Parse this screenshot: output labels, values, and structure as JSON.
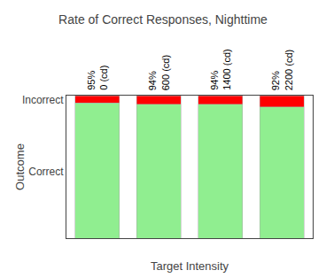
{
  "chart_data": {
    "type": "bar",
    "title": "Rate of Correct Responses, Nighttime",
    "xlabel": "Target Intensity",
    "ylabel": "Outcome",
    "categories": [
      "0 (cd)",
      "600 (cd)",
      "1400 (cd)",
      "2200 (cd)"
    ],
    "series": [
      {
        "color": "#90EE90",
        "values": [
          0.95,
          0.94,
          0.94,
          0.92
        ],
        "value_labels": [
          "95%",
          "94%",
          "94%",
          "92%"
        ]
      },
      {
        "color": "#FF0000",
        "values": [
          0.05,
          0.06,
          0.06,
          0.08
        ]
      }
    ],
    "stacked": true,
    "data_labels": true,
    "tick_labels": "y",
    "grid": false,
    "ylim": [
      0,
      1.0
    ],
    "yticks": [
      {
        "value": 0.47,
        "label": "Correct"
      },
      {
        "value": 0.97,
        "label": "Incorrect"
      }
    ]
  }
}
